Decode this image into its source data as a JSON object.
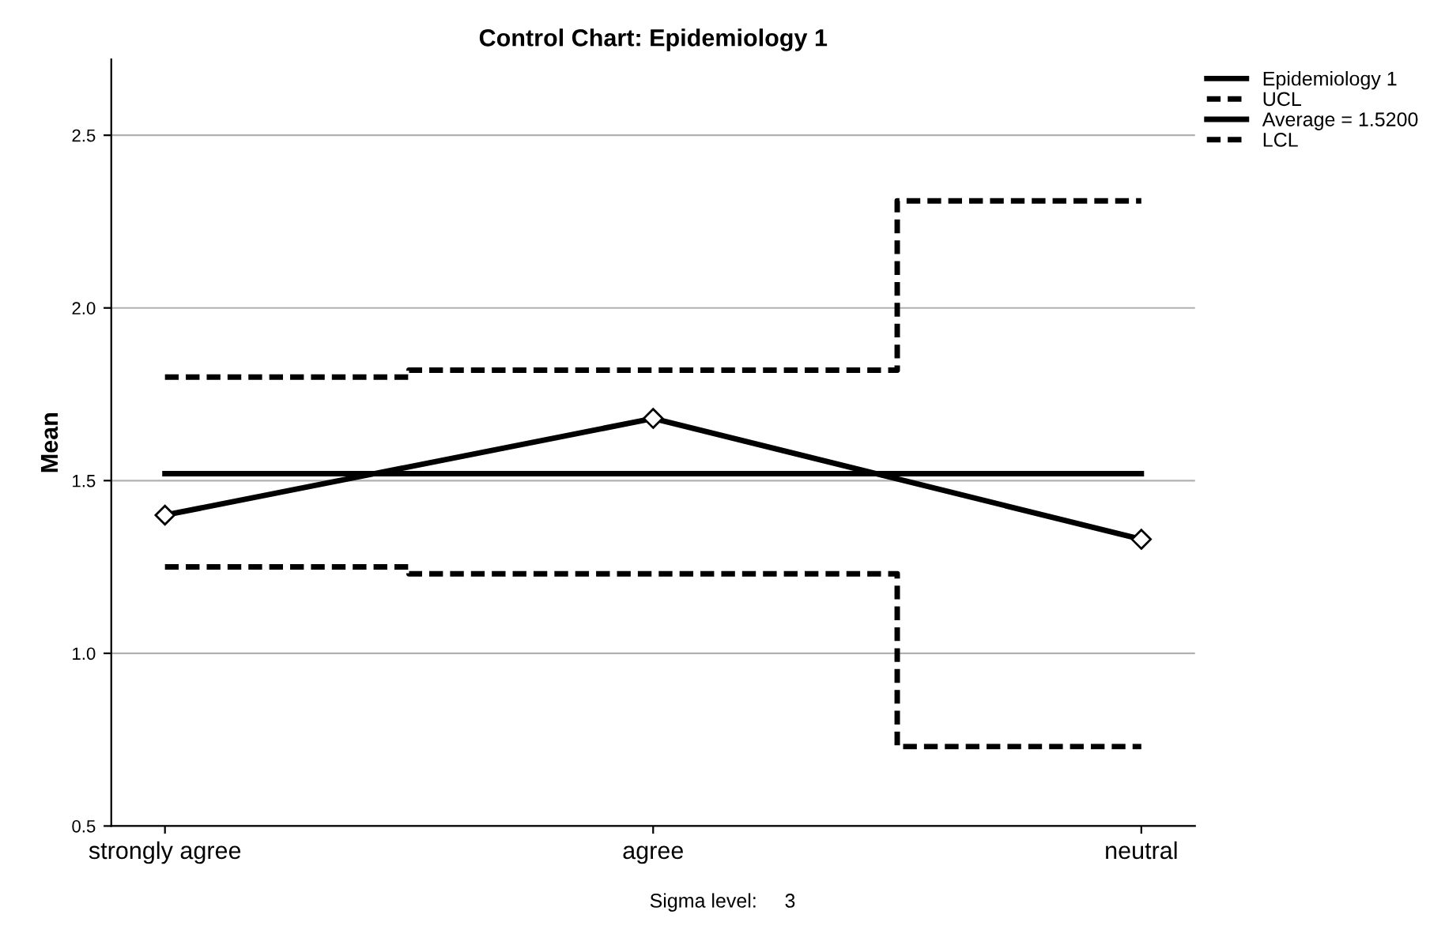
{
  "chart_data": {
    "type": "line",
    "title": "Control Chart: Epidemiology 1",
    "ylabel": "Mean",
    "categories": [
      "strongly agree",
      "agree",
      "neutral"
    ],
    "series": [
      {
        "name": "Epidemiology 1",
        "color": "#000000",
        "values": [
          1.4,
          1.68,
          1.33
        ],
        "marker": "diamond",
        "line_style": "solid"
      },
      {
        "name": "UCL",
        "color": "#000000",
        "type": "step",
        "values": [
          1.8,
          1.82,
          2.31
        ],
        "line_style": "dashed"
      },
      {
        "name": "Average = 1.5200",
        "color": "#000000",
        "values": [
          1.52,
          1.52,
          1.52
        ],
        "line_style": "solid"
      },
      {
        "name": "LCL",
        "color": "#000000",
        "type": "step",
        "values": [
          1.25,
          1.23,
          0.73
        ],
        "line_style": "dashed"
      }
    ],
    "ylim": [
      0.5,
      2.72
    ],
    "yticks": [
      {
        "value": 0.5,
        "label": "0.5"
      },
      {
        "value": 1.0,
        "label": "1.0"
      },
      {
        "value": 1.5,
        "label": "1.5"
      },
      {
        "value": 2.0,
        "label": "2.0"
      },
      {
        "value": 2.5,
        "label": "2.5"
      }
    ],
    "grid": "y",
    "legend": "top right",
    "annotations": [
      "Sigma level:     3"
    ]
  }
}
